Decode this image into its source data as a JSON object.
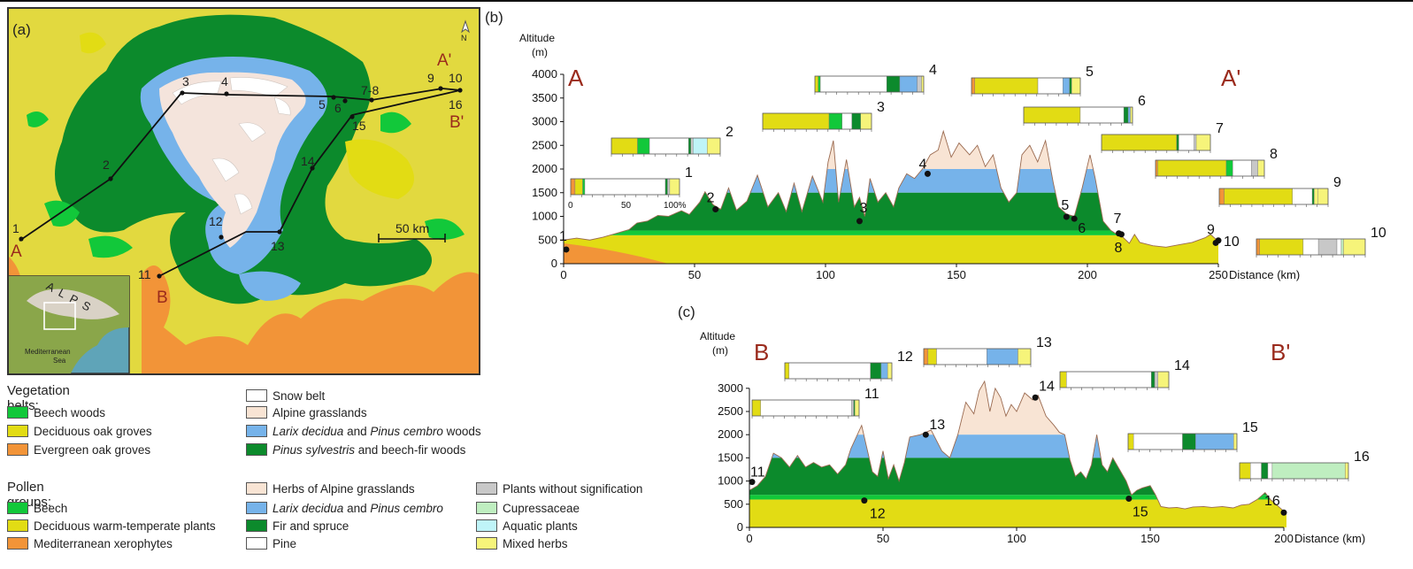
{
  "panels": {
    "a": "(a)",
    "b": "(b)",
    "c": "(c)"
  },
  "colors": {
    "snow": "#ffffff",
    "alpine": "#f8e4d4",
    "larix": "#76b3ea",
    "pinus_sylvestris": "#0c8a2c",
    "beech": "#12c83a",
    "deciduous_oak": "#e2dc14",
    "evergreen_oak": "#f29438",
    "plants_without_signification": "#c8c8c8",
    "cupressaceae": "#bfeec0",
    "aquatic": "#bff4f8",
    "mixed_herbs": "#f6f47a",
    "pine": "#ffffff"
  },
  "map": {
    "north_label": "N",
    "scale_label": "50 km",
    "inset_alps_label": "A L P S",
    "inset_sea_label_1": "Mediterranean",
    "inset_sea_label_2": "Sea",
    "profile_letters": {
      "A": "A",
      "A_prime": "A'",
      "B": "B",
      "B_prime": "B'"
    },
    "site_labels": [
      "1",
      "2",
      "3",
      "4",
      "5",
      "6",
      "7-8",
      "9",
      "10",
      "11",
      "12",
      "13",
      "14",
      "15",
      "16"
    ]
  },
  "legend": {
    "vegetation_title": "Vegetation belts:",
    "vegetation_col1": [
      "Beech woods",
      "Deciduous oak groves",
      "Evergreen oak groves"
    ],
    "vegetation_col2": [
      {
        "italic": "",
        "text": "Snow belt"
      },
      {
        "italic": "",
        "text": "Alpine grasslands"
      },
      {
        "italic": "Larix decidua",
        "mid": " and ",
        "italic2": "Pinus cembro",
        "text": " woods"
      },
      {
        "italic": "Pinus sylvestris",
        "text": " and beech-fir woods"
      }
    ],
    "pollen_title": "Pollen groups:",
    "pollen_col1": [
      "Beech",
      "Deciduous warm-temperate plants",
      "Mediterranean xerophytes"
    ],
    "pollen_col2": [
      {
        "italic": "",
        "text": "Herbs of Alpine grasslands"
      },
      {
        "italic": "Larix decidua",
        "mid": " and ",
        "italic2": "Pinus cembro",
        "text": ""
      },
      {
        "italic": "",
        "text": "Fir and spruce"
      },
      {
        "italic": "",
        "text": "Pine"
      }
    ],
    "pollen_col3": [
      "Plants without signification",
      "Cupressaceae",
      "Aquatic plants",
      "Mixed herbs"
    ]
  },
  "profile_b": {
    "ylabel_1": "Altitude",
    "ylabel_2": "(m)",
    "xlabel": "Distance (km)",
    "start_letter": "A",
    "end_letter": "A'",
    "yticks": [
      0,
      500,
      1000,
      1500,
      2000,
      2500,
      3000,
      3500,
      4000
    ],
    "xticks": [
      0,
      50,
      100,
      150,
      200,
      250
    ],
    "pct_axis": [
      "0",
      "50",
      "100%"
    ],
    "belts": {
      "deciduous_oak_top": 600,
      "beech_top": 700,
      "pinus_top": 1500,
      "larix_top": 2000
    },
    "profile": [
      [
        0,
        500
      ],
      [
        5,
        540
      ],
      [
        10,
        500
      ],
      [
        15,
        560
      ],
      [
        20,
        640
      ],
      [
        25,
        720
      ],
      [
        28,
        860
      ],
      [
        32,
        900
      ],
      [
        36,
        1020
      ],
      [
        40,
        1000
      ],
      [
        45,
        1120
      ],
      [
        48,
        1040
      ],
      [
        52,
        1300
      ],
      [
        54,
        1520
      ],
      [
        57,
        1250
      ],
      [
        60,
        1150
      ],
      [
        63,
        1600
      ],
      [
        66,
        1130
      ],
      [
        70,
        1320
      ],
      [
        74,
        1870
      ],
      [
        78,
        1200
      ],
      [
        82,
        1500
      ],
      [
        85,
        1100
      ],
      [
        88,
        1700
      ],
      [
        91,
        1100
      ],
      [
        95,
        1850
      ],
      [
        99,
        1300
      ],
      [
        101,
        2150
      ],
      [
        103,
        2600
      ],
      [
        105,
        1300
      ],
      [
        108,
        2200
      ],
      [
        111,
        1200
      ],
      [
        113,
        1400
      ],
      [
        115,
        1000
      ],
      [
        117,
        1800
      ],
      [
        120,
        1300
      ],
      [
        123,
        1500
      ],
      [
        126,
        1200
      ],
      [
        128,
        1600
      ],
      [
        131,
        1900
      ],
      [
        134,
        1800
      ],
      [
        137,
        2000
      ],
      [
        140,
        2300
      ],
      [
        143,
        2400
      ],
      [
        145,
        2800
      ],
      [
        148,
        2250
      ],
      [
        151,
        2550
      ],
      [
        155,
        2300
      ],
      [
        158,
        2500
      ],
      [
        161,
        2050
      ],
      [
        164,
        2300
      ],
      [
        167,
        1600
      ],
      [
        170,
        1300
      ],
      [
        173,
        1500
      ],
      [
        175,
        2300
      ],
      [
        178,
        2500
      ],
      [
        181,
        2150
      ],
      [
        184,
        2600
      ],
      [
        187,
        1700
      ],
      [
        189,
        1200
      ],
      [
        192,
        1050
      ],
      [
        195,
        1000
      ],
      [
        198,
        1600
      ],
      [
        201,
        2300
      ],
      [
        203,
        1800
      ],
      [
        206,
        900
      ],
      [
        209,
        700
      ],
      [
        211,
        630
      ],
      [
        213,
        590
      ],
      [
        216,
        430
      ],
      [
        218,
        620
      ],
      [
        220,
        450
      ],
      [
        225,
        380
      ],
      [
        230,
        350
      ],
      [
        235,
        400
      ],
      [
        240,
        450
      ],
      [
        245,
        550
      ],
      [
        247,
        620
      ],
      [
        250,
        470
      ]
    ],
    "sites": [
      {
        "label": "1",
        "x": 1,
        "alt": 300
      },
      {
        "label": "2",
        "x": 58,
        "alt": 1150
      },
      {
        "label": "3",
        "x": 113,
        "alt": 900
      },
      {
        "label": "4",
        "x": 139,
        "alt": 1900
      },
      {
        "label": "5",
        "x": 192,
        "alt": 990
      },
      {
        "label": "6",
        "x": 195,
        "alt": 950
      },
      {
        "label": "7",
        "x": 212,
        "alt": 640
      },
      {
        "label": "8",
        "x": 213,
        "alt": 620
      },
      {
        "label": "9",
        "x": 249,
        "alt": 440
      },
      {
        "label": "10",
        "x": 250,
        "alt": 490
      }
    ]
  },
  "profile_c": {
    "ylabel_1": "Altitude",
    "ylabel_2": "(m)",
    "xlabel": "Distance (km)",
    "start_letter": "B",
    "end_letter": "B'",
    "yticks": [
      0,
      500,
      1000,
      1500,
      2000,
      2500,
      3000
    ],
    "xticks": [
      0,
      50,
      100,
      150,
      200
    ],
    "belts": {
      "deciduous_oak_top": 600,
      "beech_top": 700,
      "pinus_top": 1500,
      "larix_top": 2000
    },
    "profile": [
      [
        0,
        800
      ],
      [
        3,
        900
      ],
      [
        6,
        1100
      ],
      [
        9,
        1600
      ],
      [
        12,
        1500
      ],
      [
        15,
        1300
      ],
      [
        18,
        1550
      ],
      [
        21,
        1300
      ],
      [
        24,
        1400
      ],
      [
        27,
        1300
      ],
      [
        30,
        1350
      ],
      [
        33,
        1150
      ],
      [
        36,
        1350
      ],
      [
        38,
        1700
      ],
      [
        40,
        1950
      ],
      [
        42,
        2200
      ],
      [
        44,
        1700
      ],
      [
        46,
        1200
      ],
      [
        48,
        1100
      ],
      [
        50,
        1650
      ],
      [
        52,
        1050
      ],
      [
        54,
        1350
      ],
      [
        56,
        1000
      ],
      [
        58,
        1400
      ],
      [
        60,
        1950
      ],
      [
        64,
        2000
      ],
      [
        68,
        2100
      ],
      [
        72,
        1650
      ],
      [
        75,
        1500
      ],
      [
        78,
        2000
      ],
      [
        81,
        2700
      ],
      [
        84,
        2450
      ],
      [
        86,
        2950
      ],
      [
        88,
        3150
      ],
      [
        90,
        2500
      ],
      [
        92,
        3000
      ],
      [
        94,
        2800
      ],
      [
        96,
        2400
      ],
      [
        98,
        2650
      ],
      [
        100,
        2500
      ],
      [
        103,
        2900
      ],
      [
        106,
        2750
      ],
      [
        108,
        2850
      ],
      [
        111,
        2400
      ],
      [
        114,
        2200
      ],
      [
        116,
        2050
      ],
      [
        118,
        2000
      ],
      [
        120,
        1450
      ],
      [
        122,
        1100
      ],
      [
        124,
        1200
      ],
      [
        126,
        1050
      ],
      [
        128,
        1350
      ],
      [
        130,
        2000
      ],
      [
        132,
        1350
      ],
      [
        134,
        1200
      ],
      [
        136,
        1500
      ],
      [
        139,
        1200
      ],
      [
        141,
        1000
      ],
      [
        143,
        700
      ],
      [
        145,
        800
      ],
      [
        147,
        850
      ],
      [
        150,
        900
      ],
      [
        152,
        700
      ],
      [
        154,
        450
      ],
      [
        157,
        420
      ],
      [
        160,
        430
      ],
      [
        163,
        400
      ],
      [
        166,
        440
      ],
      [
        170,
        450
      ],
      [
        173,
        430
      ],
      [
        177,
        450
      ],
      [
        181,
        420
      ],
      [
        184,
        480
      ],
      [
        187,
        500
      ],
      [
        190,
        600
      ],
      [
        193,
        750
      ],
      [
        195,
        600
      ],
      [
        198,
        450
      ],
      [
        201,
        300
      ]
    ],
    "sites": [
      {
        "label": "11",
        "x": 1,
        "alt": 980
      },
      {
        "label": "12",
        "x": 43,
        "alt": 580
      },
      {
        "label": "13",
        "x": 66,
        "alt": 2000
      },
      {
        "label": "14",
        "x": 107,
        "alt": 2800
      },
      {
        "label": "15",
        "x": 142,
        "alt": 620
      },
      {
        "label": "16",
        "x": 200,
        "alt": 320
      }
    ]
  },
  "pollen_bars_b": [
    {
      "label": "1",
      "segments": [
        {
          "c": "evergreen_oak",
          "v": 4
        },
        {
          "c": "deciduous_oak",
          "v": 7
        },
        {
          "c": "beech",
          "v": 2
        },
        {
          "c": "pine",
          "v": 74
        },
        {
          "c": "pinus_sylvestris",
          "v": 2
        },
        {
          "c": "plants_without_signification",
          "v": 2
        },
        {
          "c": "mixed_herbs",
          "v": 9
        }
      ]
    },
    {
      "label": "2",
      "segments": [
        {
          "c": "deciduous_oak",
          "v": 24
        },
        {
          "c": "beech",
          "v": 11
        },
        {
          "c": "pine",
          "v": 36
        },
        {
          "c": "pinus_sylvestris",
          "v": 2
        },
        {
          "c": "plants_without_signification",
          "v": 2
        },
        {
          "c": "aquatic",
          "v": 13
        },
        {
          "c": "mixed_herbs",
          "v": 12
        }
      ]
    },
    {
      "label": "3",
      "segments": [
        {
          "c": "deciduous_oak",
          "v": 61
        },
        {
          "c": "beech",
          "v": 12
        },
        {
          "c": "pine",
          "v": 9
        },
        {
          "c": "pinus_sylvestris",
          "v": 8
        },
        {
          "c": "mixed_herbs",
          "v": 10
        }
      ]
    },
    {
      "label": "4",
      "segments": [
        {
          "c": "deciduous_oak",
          "v": 3
        },
        {
          "c": "beech",
          "v": 2
        },
        {
          "c": "pine",
          "v": 61
        },
        {
          "c": "pinus_sylvestris",
          "v": 12
        },
        {
          "c": "larix",
          "v": 16
        },
        {
          "c": "plants_without_signification",
          "v": 4
        },
        {
          "c": "mixed_herbs",
          "v": 2
        }
      ]
    },
    {
      "label": "5",
      "segments": [
        {
          "c": "evergreen_oak",
          "v": 3
        },
        {
          "c": "deciduous_oak",
          "v": 58
        },
        {
          "c": "pine",
          "v": 23
        },
        {
          "c": "larix",
          "v": 6
        },
        {
          "c": "pinus_sylvestris",
          "v": 2
        },
        {
          "c": "mixed_herbs",
          "v": 8
        }
      ]
    },
    {
      "label": "6",
      "segments": [
        {
          "c": "deciduous_oak",
          "v": 52
        },
        {
          "c": "pine",
          "v": 40
        },
        {
          "c": "pinus_sylvestris",
          "v": 4
        },
        {
          "c": "larix",
          "v": 2
        },
        {
          "c": "mixed_herbs",
          "v": 2
        }
      ]
    },
    {
      "label": "7",
      "segments": [
        {
          "c": "deciduous_oak",
          "v": 69
        },
        {
          "c": "pinus_sylvestris",
          "v": 2
        },
        {
          "c": "pine",
          "v": 14
        },
        {
          "c": "plants_without_signification",
          "v": 2
        },
        {
          "c": "mixed_herbs",
          "v": 13
        }
      ]
    },
    {
      "label": "8",
      "segments": [
        {
          "c": "evergreen_oak",
          "v": 2
        },
        {
          "c": "deciduous_oak",
          "v": 63
        },
        {
          "c": "beech",
          "v": 6
        },
        {
          "c": "pine",
          "v": 17
        },
        {
          "c": "plants_without_signification",
          "v": 6
        },
        {
          "c": "mixed_herbs",
          "v": 6
        }
      ]
    },
    {
      "label": "9",
      "segments": [
        {
          "c": "evergreen_oak",
          "v": 5
        },
        {
          "c": "deciduous_oak",
          "v": 69
        },
        {
          "c": "pine",
          "v": 20
        },
        {
          "c": "pinus_sylvestris",
          "v": 2
        },
        {
          "c": "mixed_herbs",
          "v": 4
        },
        {
          "c": "mixed_herbs",
          "v": 10
        }
      ]
    },
    {
      "label": "10",
      "segments": [
        {
          "c": "evergreen_oak",
          "v": 3
        },
        {
          "c": "deciduous_oak",
          "v": 40
        },
        {
          "c": "pine",
          "v": 14
        },
        {
          "c": "plants_without_signification",
          "v": 17
        },
        {
          "c": "pine",
          "v": 4
        },
        {
          "c": "cupressaceae",
          "v": 2
        },
        {
          "c": "mixed_herbs",
          "v": 20
        }
      ]
    }
  ],
  "pollen_bars_c": [
    {
      "label": "11",
      "segments": [
        {
          "c": "deciduous_oak",
          "v": 8
        },
        {
          "c": "pine",
          "v": 85
        },
        {
          "c": "plants_without_signification",
          "v": 2
        },
        {
          "c": "pinus_sylvestris",
          "v": 1
        },
        {
          "c": "mixed_herbs",
          "v": 4
        }
      ]
    },
    {
      "label": "12",
      "segments": [
        {
          "c": "deciduous_oak",
          "v": 4
        },
        {
          "c": "pine",
          "v": 76
        },
        {
          "c": "pinus_sylvestris",
          "v": 10
        },
        {
          "c": "larix",
          "v": 6
        },
        {
          "c": "mixed_herbs",
          "v": 4
        }
      ]
    },
    {
      "label": "13",
      "segments": [
        {
          "c": "evergreen_oak",
          "v": 4
        },
        {
          "c": "deciduous_oak",
          "v": 8
        },
        {
          "c": "pine",
          "v": 47
        },
        {
          "c": "larix",
          "v": 29
        },
        {
          "c": "mixed_herbs",
          "v": 12
        }
      ]
    },
    {
      "label": "14",
      "segments": [
        {
          "c": "deciduous_oak",
          "v": 6
        },
        {
          "c": "pine",
          "v": 78
        },
        {
          "c": "pinus_sylvestris",
          "v": 3
        },
        {
          "c": "plants_without_signification",
          "v": 3
        },
        {
          "c": "mixed_herbs",
          "v": 10
        }
      ]
    },
    {
      "label": "15",
      "segments": [
        {
          "c": "deciduous_oak",
          "v": 5
        },
        {
          "c": "pine",
          "v": 45
        },
        {
          "c": "pinus_sylvestris",
          "v": 12
        },
        {
          "c": "larix",
          "v": 35
        },
        {
          "c": "mixed_herbs",
          "v": 3
        }
      ]
    },
    {
      "label": "16",
      "segments": [
        {
          "c": "deciduous_oak",
          "v": 10
        },
        {
          "c": "pine",
          "v": 10
        },
        {
          "c": "pinus_sylvestris",
          "v": 6
        },
        {
          "c": "pine",
          "v": 4
        },
        {
          "c": "cupressaceae",
          "v": 67
        },
        {
          "c": "mixed_herbs",
          "v": 3
        }
      ]
    }
  ]
}
